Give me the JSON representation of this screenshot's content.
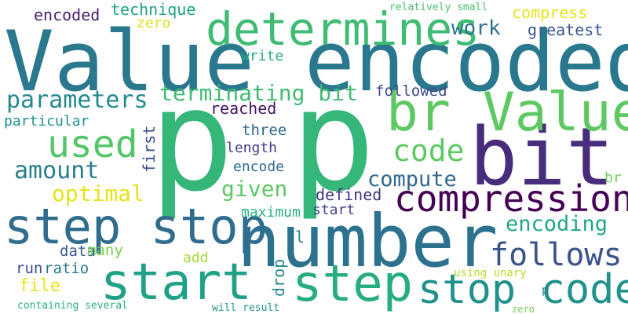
{
  "words": [
    {
      "text": "Value encoded",
      "color": "#2a788e"
    },
    {
      "text": "p",
      "color": "#35b779"
    },
    {
      "text": "p",
      "color": "#35b779"
    },
    {
      "text": "number",
      "color": "#2c728e"
    },
    {
      "text": "bit",
      "color": "#472d7b"
    },
    {
      "text": "br Value",
      "color": "#5ec962"
    },
    {
      "text": "determines",
      "color": "#3fbc73"
    },
    {
      "text": "step stop",
      "color": "#2f6c8e"
    },
    {
      "text": "start",
      "color": "#1fa187"
    },
    {
      "text": "step",
      "color": "#26ad81"
    },
    {
      "text": "stop code",
      "color": "#21918c"
    },
    {
      "text": "compression",
      "color": "#440154"
    },
    {
      "text": "used",
      "color": "#54c568"
    },
    {
      "text": "code",
      "color": "#5ec962"
    },
    {
      "text": "follows",
      "color": "#3b528b"
    },
    {
      "text": "parameters",
      "color": "#23898e"
    },
    {
      "text": "terminating bit",
      "color": "#3fbc73"
    },
    {
      "text": "amount",
      "color": "#277f8e"
    },
    {
      "text": "compute",
      "color": "#31688e"
    },
    {
      "text": "encoding",
      "color": "#22a785"
    },
    {
      "text": "optimal",
      "color": "#e5e419"
    },
    {
      "text": "given",
      "color": "#5ec962"
    },
    {
      "text": "work",
      "color": "#2c728e"
    },
    {
      "text": "technique",
      "color": "#1fa187"
    },
    {
      "text": "encoded",
      "color": "#482173"
    },
    {
      "text": "zero",
      "color": "#dde318"
    },
    {
      "text": "compress",
      "color": "#e5e419"
    },
    {
      "text": "greatest",
      "color": "#38598c"
    },
    {
      "text": "write",
      "color": "#26ad81"
    },
    {
      "text": "followed",
      "color": "#3e4a89"
    },
    {
      "text": "reached",
      "color": "#471164"
    },
    {
      "text": "particular",
      "color": "#21918c"
    },
    {
      "text": "three",
      "color": "#2f6c8e"
    },
    {
      "text": "length",
      "color": "#433e85"
    },
    {
      "text": "encode",
      "color": "#31688e"
    },
    {
      "text": "first",
      "color": "#3b528b"
    },
    {
      "text": "defined",
      "color": "#46327e"
    },
    {
      "text": "maximum",
      "color": "#2db27d"
    },
    {
      "text": "start",
      "color": "#404688"
    },
    {
      "text": "br",
      "color": "#6ece58"
    },
    {
      "text": "data",
      "color": "#38598c"
    },
    {
      "text": "many",
      "color": "#7ad151"
    },
    {
      "text": "l",
      "color": "#25858e"
    },
    {
      "text": "add",
      "color": "#9fda3a"
    },
    {
      "text": "run",
      "color": "#3e4a89"
    },
    {
      "text": "ratio",
      "color": "#2a788e"
    },
    {
      "text": "drop",
      "color": "#23898e"
    },
    {
      "text": "file",
      "color": "#e5e419"
    },
    {
      "text": "using unary",
      "color": "#b5de2b"
    },
    {
      "text": "p",
      "color": "#25858e"
    },
    {
      "text": "containing several",
      "color": "#29af7f"
    },
    {
      "text": "will result",
      "color": "#1f968b"
    },
    {
      "text": "relatively small",
      "color": "#4ac16d"
    },
    {
      "text": "zero",
      "color": "#6ece58"
    }
  ]
}
